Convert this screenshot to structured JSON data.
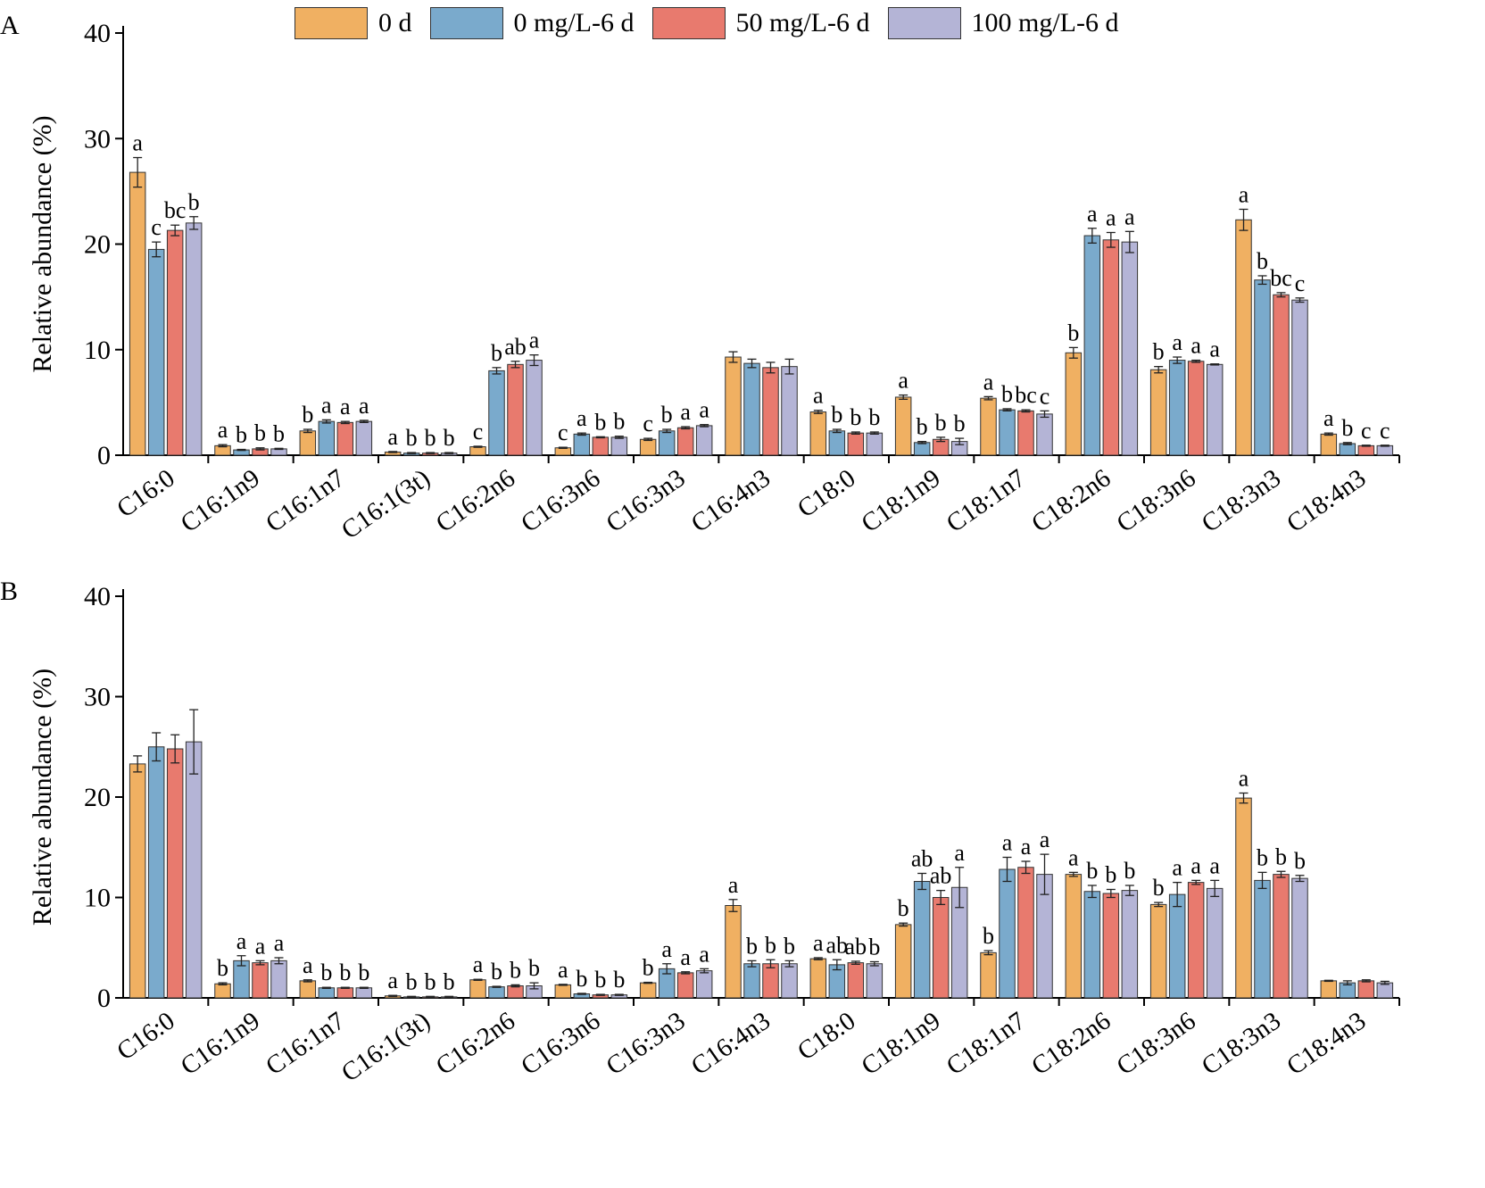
{
  "legend": {
    "items": [
      {
        "label": "0 d",
        "color": "#F0B062"
      },
      {
        "label": "0 mg/L-6 d",
        "color": "#7AAACC"
      },
      {
        "label": "50 mg/L-6 d",
        "color": "#E87A6E"
      },
      {
        "label": "100 mg/L-6 d",
        "color": "#B4B4D6"
      }
    ]
  },
  "chart_data": [
    {
      "type": "bar",
      "panel_label": "A",
      "ylabel": "Relative abundance (%)",
      "ylim": [
        0,
        40
      ],
      "yticks": [
        "0",
        "10",
        "20",
        "30",
        "40"
      ],
      "categories": [
        "C16:0",
        "C16:1n9",
        "C16:1n7",
        "C16:1(3t)",
        "C16:2n6",
        "C16:3n6",
        "C16:3n3",
        "C16:4n3",
        "C18:0",
        "C18:1n9",
        "C18:1n7",
        "C18:2n6",
        "C18:3n6",
        "C18:3n3",
        "C18:4n3"
      ],
      "series": [
        {
          "name": "0 d",
          "color": "#F0B062",
          "values": [
            26.8,
            0.9,
            2.3,
            0.3,
            0.8,
            0.7,
            1.5,
            9.3,
            4.1,
            5.5,
            5.4,
            9.7,
            8.1,
            22.3,
            2.0
          ],
          "errors": [
            1.4,
            0.1,
            0.15,
            0.05,
            0.05,
            0.05,
            0.1,
            0.5,
            0.15,
            0.2,
            0.15,
            0.5,
            0.3,
            1.0,
            0.1
          ],
          "letters": [
            "a",
            "a",
            "b",
            "a",
            "c",
            "c",
            "c",
            "",
            "a",
            "a",
            "a",
            "b",
            "b",
            "a",
            "a"
          ]
        },
        {
          "name": "0 mg/L-6 d",
          "color": "#7AAACC",
          "values": [
            19.5,
            0.5,
            3.2,
            0.2,
            8.0,
            2.0,
            2.3,
            8.7,
            2.3,
            1.2,
            4.3,
            20.8,
            9.0,
            16.6,
            1.1
          ],
          "errors": [
            0.7,
            0.05,
            0.15,
            0.05,
            0.3,
            0.1,
            0.15,
            0.4,
            0.15,
            0.1,
            0.1,
            0.7,
            0.3,
            0.4,
            0.1
          ],
          "letters": [
            "c",
            "b",
            "a",
            "b",
            "b",
            "a",
            "b",
            "",
            "b",
            "b",
            "b",
            "a",
            "a",
            "b",
            "b"
          ]
        },
        {
          "name": "50 mg/L-6 d",
          "color": "#E87A6E",
          "values": [
            21.3,
            0.6,
            3.1,
            0.2,
            8.6,
            1.7,
            2.6,
            8.3,
            2.1,
            1.5,
            4.2,
            20.4,
            8.9,
            15.2,
            0.9
          ],
          "errors": [
            0.5,
            0.1,
            0.1,
            0.05,
            0.3,
            0.05,
            0.1,
            0.5,
            0.1,
            0.2,
            0.1,
            0.7,
            0.1,
            0.2,
            0.05
          ],
          "letters": [
            "bc",
            "b",
            "a",
            "b",
            "ab",
            "b",
            "a",
            "",
            "b",
            "b",
            "bc",
            "a",
            "a",
            "bc",
            "c"
          ]
        },
        {
          "name": "100 mg/L-6 d",
          "color": "#B4B4D6",
          "values": [
            22.0,
            0.6,
            3.2,
            0.2,
            9.0,
            1.7,
            2.8,
            8.4,
            2.1,
            1.3,
            3.9,
            20.2,
            8.6,
            14.7,
            0.9
          ],
          "errors": [
            0.6,
            0.05,
            0.1,
            0.05,
            0.5,
            0.1,
            0.1,
            0.7,
            0.1,
            0.3,
            0.3,
            1.0,
            0.05,
            0.2,
            0.05
          ],
          "letters": [
            "b",
            "b",
            "a",
            "b",
            "a",
            "b",
            "a",
            "",
            "b",
            "b",
            "c",
            "a",
            "a",
            "c",
            "c"
          ]
        }
      ]
    },
    {
      "type": "bar",
      "panel_label": "B",
      "ylabel": "Relative abundance (%)",
      "ylim": [
        0,
        40
      ],
      "yticks": [
        "0",
        "10",
        "20",
        "30",
        "40"
      ],
      "categories": [
        "C16:0",
        "C16:1n9",
        "C16:1n7",
        "C16:1(3t)",
        "C16:2n6",
        "C16:3n6",
        "C16:3n3",
        "C16:4n3",
        "C18:0",
        "C18:1n9",
        "C18:1n7",
        "C18:2n6",
        "C18:3n6",
        "C18:3n3",
        "C18:4n3"
      ],
      "series": [
        {
          "name": "0 d",
          "color": "#F0B062",
          "values": [
            23.3,
            1.4,
            1.7,
            0.2,
            1.8,
            1.3,
            1.5,
            9.2,
            3.9,
            7.3,
            4.5,
            12.3,
            9.3,
            19.9,
            1.7
          ],
          "errors": [
            0.8,
            0.1,
            0.1,
            0.05,
            0.05,
            0.05,
            0.05,
            0.6,
            0.1,
            0.15,
            0.2,
            0.2,
            0.2,
            0.5,
            0.05
          ],
          "letters": [
            "",
            "b",
            "a",
            "a",
            "a",
            "a",
            "b",
            "a",
            "a",
            "b",
            "b",
            "a",
            "b",
            "a",
            ""
          ]
        },
        {
          "name": "0 mg/L-6 d",
          "color": "#7AAACC",
          "values": [
            25.0,
            3.7,
            1.0,
            0.1,
            1.1,
            0.4,
            2.9,
            3.4,
            3.3,
            11.6,
            12.8,
            10.6,
            10.3,
            11.7,
            1.5
          ],
          "errors": [
            1.4,
            0.5,
            0.05,
            0.05,
            0.05,
            0.05,
            0.5,
            0.3,
            0.5,
            0.8,
            1.2,
            0.6,
            1.2,
            0.8,
            0.2
          ],
          "letters": [
            "",
            "a",
            "b",
            "b",
            "b",
            "b",
            "a",
            "b",
            "ab",
            "ab",
            "a",
            "b",
            "a",
            "b",
            ""
          ]
        },
        {
          "name": "50 mg/L-6 d",
          "color": "#E87A6E",
          "values": [
            24.8,
            3.5,
            1.0,
            0.1,
            1.2,
            0.3,
            2.5,
            3.4,
            3.5,
            10.0,
            13.0,
            10.4,
            11.5,
            12.3,
            1.7
          ],
          "errors": [
            1.4,
            0.2,
            0.05,
            0.05,
            0.1,
            0.05,
            0.1,
            0.4,
            0.15,
            0.7,
            0.6,
            0.4,
            0.2,
            0.3,
            0.1
          ],
          "letters": [
            "",
            "a",
            "b",
            "b",
            "b",
            "b",
            "a",
            "b",
            "ab",
            "ab",
            "a",
            "b",
            "a",
            "b",
            ""
          ]
        },
        {
          "name": "100 mg/L-6 d",
          "color": "#B4B4D6",
          "values": [
            25.5,
            3.7,
            1.0,
            0.1,
            1.2,
            0.3,
            2.7,
            3.4,
            3.4,
            11.0,
            12.3,
            10.7,
            10.9,
            11.9,
            1.5
          ],
          "errors": [
            3.2,
            0.3,
            0.05,
            0.05,
            0.3,
            0.05,
            0.2,
            0.3,
            0.2,
            2.0,
            2.0,
            0.5,
            0.8,
            0.3,
            0.15
          ],
          "letters": [
            "",
            "a",
            "b",
            "b",
            "b",
            "b",
            "a",
            "b",
            "b",
            "a",
            "a",
            "b",
            "a",
            "b",
            ""
          ]
        }
      ]
    }
  ]
}
